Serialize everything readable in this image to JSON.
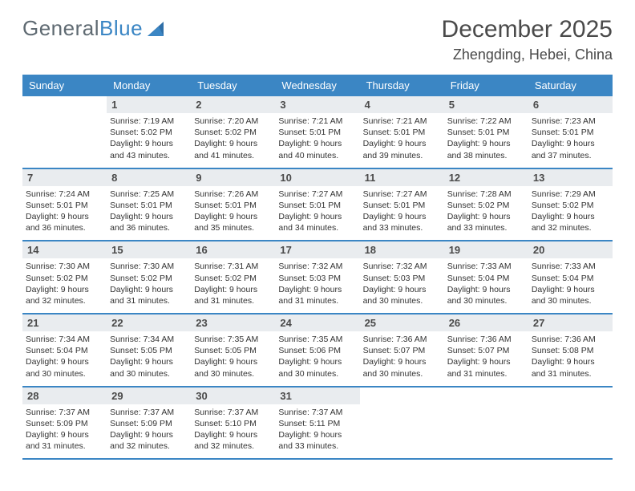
{
  "logo": {
    "text_gray": "General",
    "text_blue": "Blue"
  },
  "title": "December 2025",
  "location": "Zhengding, Hebei, China",
  "colors": {
    "header_bg": "#3b86c4",
    "header_text": "#ffffff",
    "daynum_bg": "#e9ecef",
    "border": "#3b86c4",
    "body_text": "#333333",
    "title_text": "#4a4a4a"
  },
  "daynames": [
    "Sunday",
    "Monday",
    "Tuesday",
    "Wednesday",
    "Thursday",
    "Friday",
    "Saturday"
  ],
  "weeks": [
    [
      {
        "day": "",
        "sunrise": "",
        "sunset": "",
        "daylight": ""
      },
      {
        "day": "1",
        "sunrise": "Sunrise: 7:19 AM",
        "sunset": "Sunset: 5:02 PM",
        "daylight": "Daylight: 9 hours and 43 minutes."
      },
      {
        "day": "2",
        "sunrise": "Sunrise: 7:20 AM",
        "sunset": "Sunset: 5:02 PM",
        "daylight": "Daylight: 9 hours and 41 minutes."
      },
      {
        "day": "3",
        "sunrise": "Sunrise: 7:21 AM",
        "sunset": "Sunset: 5:01 PM",
        "daylight": "Daylight: 9 hours and 40 minutes."
      },
      {
        "day": "4",
        "sunrise": "Sunrise: 7:21 AM",
        "sunset": "Sunset: 5:01 PM",
        "daylight": "Daylight: 9 hours and 39 minutes."
      },
      {
        "day": "5",
        "sunrise": "Sunrise: 7:22 AM",
        "sunset": "Sunset: 5:01 PM",
        "daylight": "Daylight: 9 hours and 38 minutes."
      },
      {
        "day": "6",
        "sunrise": "Sunrise: 7:23 AM",
        "sunset": "Sunset: 5:01 PM",
        "daylight": "Daylight: 9 hours and 37 minutes."
      }
    ],
    [
      {
        "day": "7",
        "sunrise": "Sunrise: 7:24 AM",
        "sunset": "Sunset: 5:01 PM",
        "daylight": "Daylight: 9 hours and 36 minutes."
      },
      {
        "day": "8",
        "sunrise": "Sunrise: 7:25 AM",
        "sunset": "Sunset: 5:01 PM",
        "daylight": "Daylight: 9 hours and 36 minutes."
      },
      {
        "day": "9",
        "sunrise": "Sunrise: 7:26 AM",
        "sunset": "Sunset: 5:01 PM",
        "daylight": "Daylight: 9 hours and 35 minutes."
      },
      {
        "day": "10",
        "sunrise": "Sunrise: 7:27 AM",
        "sunset": "Sunset: 5:01 PM",
        "daylight": "Daylight: 9 hours and 34 minutes."
      },
      {
        "day": "11",
        "sunrise": "Sunrise: 7:27 AM",
        "sunset": "Sunset: 5:01 PM",
        "daylight": "Daylight: 9 hours and 33 minutes."
      },
      {
        "day": "12",
        "sunrise": "Sunrise: 7:28 AM",
        "sunset": "Sunset: 5:02 PM",
        "daylight": "Daylight: 9 hours and 33 minutes."
      },
      {
        "day": "13",
        "sunrise": "Sunrise: 7:29 AM",
        "sunset": "Sunset: 5:02 PM",
        "daylight": "Daylight: 9 hours and 32 minutes."
      }
    ],
    [
      {
        "day": "14",
        "sunrise": "Sunrise: 7:30 AM",
        "sunset": "Sunset: 5:02 PM",
        "daylight": "Daylight: 9 hours and 32 minutes."
      },
      {
        "day": "15",
        "sunrise": "Sunrise: 7:30 AM",
        "sunset": "Sunset: 5:02 PM",
        "daylight": "Daylight: 9 hours and 31 minutes."
      },
      {
        "day": "16",
        "sunrise": "Sunrise: 7:31 AM",
        "sunset": "Sunset: 5:02 PM",
        "daylight": "Daylight: 9 hours and 31 minutes."
      },
      {
        "day": "17",
        "sunrise": "Sunrise: 7:32 AM",
        "sunset": "Sunset: 5:03 PM",
        "daylight": "Daylight: 9 hours and 31 minutes."
      },
      {
        "day": "18",
        "sunrise": "Sunrise: 7:32 AM",
        "sunset": "Sunset: 5:03 PM",
        "daylight": "Daylight: 9 hours and 30 minutes."
      },
      {
        "day": "19",
        "sunrise": "Sunrise: 7:33 AM",
        "sunset": "Sunset: 5:04 PM",
        "daylight": "Daylight: 9 hours and 30 minutes."
      },
      {
        "day": "20",
        "sunrise": "Sunrise: 7:33 AM",
        "sunset": "Sunset: 5:04 PM",
        "daylight": "Daylight: 9 hours and 30 minutes."
      }
    ],
    [
      {
        "day": "21",
        "sunrise": "Sunrise: 7:34 AM",
        "sunset": "Sunset: 5:04 PM",
        "daylight": "Daylight: 9 hours and 30 minutes."
      },
      {
        "day": "22",
        "sunrise": "Sunrise: 7:34 AM",
        "sunset": "Sunset: 5:05 PM",
        "daylight": "Daylight: 9 hours and 30 minutes."
      },
      {
        "day": "23",
        "sunrise": "Sunrise: 7:35 AM",
        "sunset": "Sunset: 5:05 PM",
        "daylight": "Daylight: 9 hours and 30 minutes."
      },
      {
        "day": "24",
        "sunrise": "Sunrise: 7:35 AM",
        "sunset": "Sunset: 5:06 PM",
        "daylight": "Daylight: 9 hours and 30 minutes."
      },
      {
        "day": "25",
        "sunrise": "Sunrise: 7:36 AM",
        "sunset": "Sunset: 5:07 PM",
        "daylight": "Daylight: 9 hours and 30 minutes."
      },
      {
        "day": "26",
        "sunrise": "Sunrise: 7:36 AM",
        "sunset": "Sunset: 5:07 PM",
        "daylight": "Daylight: 9 hours and 31 minutes."
      },
      {
        "day": "27",
        "sunrise": "Sunrise: 7:36 AM",
        "sunset": "Sunset: 5:08 PM",
        "daylight": "Daylight: 9 hours and 31 minutes."
      }
    ],
    [
      {
        "day": "28",
        "sunrise": "Sunrise: 7:37 AM",
        "sunset": "Sunset: 5:09 PM",
        "daylight": "Daylight: 9 hours and 31 minutes."
      },
      {
        "day": "29",
        "sunrise": "Sunrise: 7:37 AM",
        "sunset": "Sunset: 5:09 PM",
        "daylight": "Daylight: 9 hours and 32 minutes."
      },
      {
        "day": "30",
        "sunrise": "Sunrise: 7:37 AM",
        "sunset": "Sunset: 5:10 PM",
        "daylight": "Daylight: 9 hours and 32 minutes."
      },
      {
        "day": "31",
        "sunrise": "Sunrise: 7:37 AM",
        "sunset": "Sunset: 5:11 PM",
        "daylight": "Daylight: 9 hours and 33 minutes."
      },
      {
        "day": "",
        "sunrise": "",
        "sunset": "",
        "daylight": ""
      },
      {
        "day": "",
        "sunrise": "",
        "sunset": "",
        "daylight": ""
      },
      {
        "day": "",
        "sunrise": "",
        "sunset": "",
        "daylight": ""
      }
    ]
  ]
}
